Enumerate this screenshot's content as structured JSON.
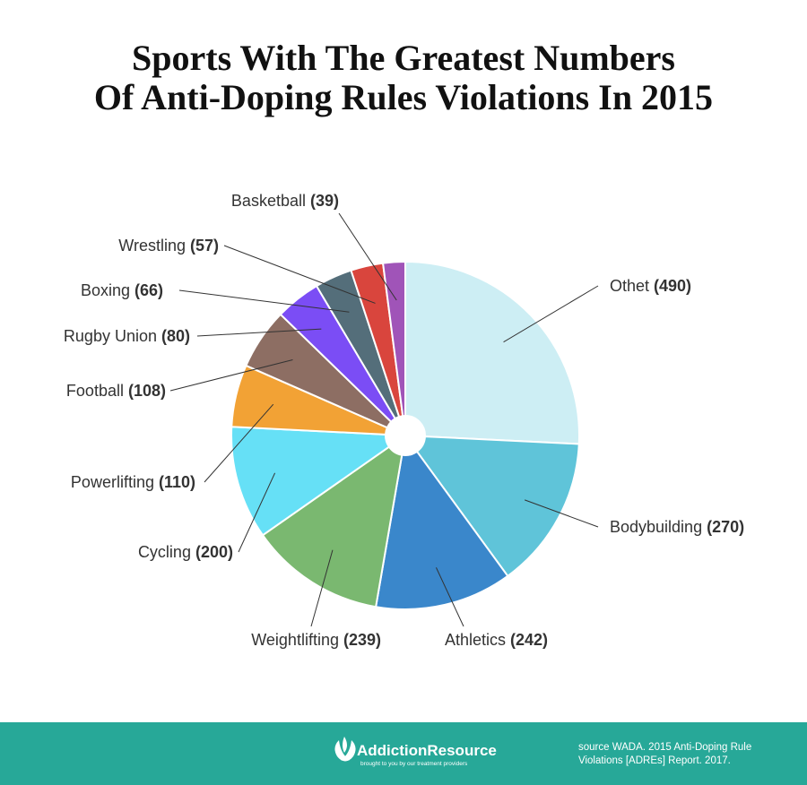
{
  "chart_data": {
    "type": "pie",
    "title": [
      "Sports With The Greatest Numbers",
      "Of Anti-Doping Rules Violations In 2015"
    ],
    "categories": [
      "Othet",
      "Bodybuilding",
      "Athletics",
      "Weightlifting",
      "Cycling",
      "Powerlifting",
      "Football",
      "Rugby Union",
      "Boxing",
      "Wrestling",
      "Basketball"
    ],
    "values": [
      490,
      270,
      242,
      239,
      200,
      110,
      108,
      80,
      66,
      57,
      39
    ],
    "value_labels": [
      "(490)",
      "(270)",
      "(242)",
      "(239)",
      "(200)",
      "(110)",
      "(108)",
      "(80)",
      "(66)",
      "(57)",
      "(39)"
    ],
    "colors": [
      "#cdeef4",
      "#5fc4d9",
      "#3a87cb",
      "#7ab870",
      "#66e0f6",
      "#f2a235",
      "#8d6e63",
      "#7b4df5",
      "#546e7a",
      "#d9453d",
      "#a054b8"
    ]
  },
  "footer": {
    "brand": "AddictionResource",
    "tagline": "brought to you by our treatment providers",
    "source": [
      "source WADA. 2015 Anti-Doping Rule",
      "Violations [ADREs] Report. 2017."
    ]
  }
}
